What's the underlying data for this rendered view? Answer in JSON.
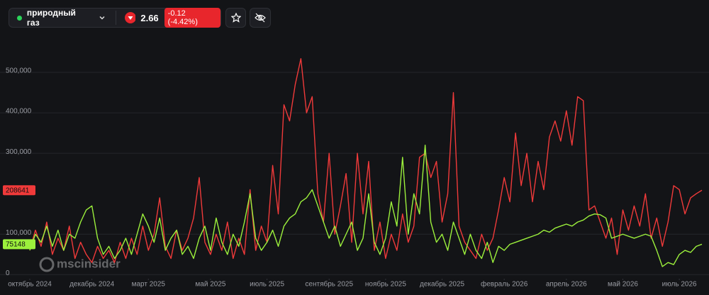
{
  "header": {
    "instrument": "природный газ",
    "price": "2.66",
    "change": "-0.12 (-4.42%)"
  },
  "chart_data": {
    "type": "line",
    "watermark": "mscinsider",
    "xlim": [
      0,
      119
    ],
    "xticks": [
      {
        "value": 0,
        "label": "октябрь 2024"
      },
      {
        "value": 11,
        "label": "декабрь 2024"
      },
      {
        "value": 21,
        "label": "март 2025"
      },
      {
        "value": 32,
        "label": "май 2025"
      },
      {
        "value": 42,
        "label": "июль 2025"
      },
      {
        "value": 53,
        "label": "сентябрь 2025"
      },
      {
        "value": 63,
        "label": "ноябрь 2025"
      },
      {
        "value": 73,
        "label": "декабрь 2025"
      },
      {
        "value": 84,
        "label": "февраль 2026"
      },
      {
        "value": 95,
        "label": "апрель 2026"
      },
      {
        "value": 105,
        "label": "май 2026"
      },
      {
        "value": 115,
        "label": "июль 2026"
      }
    ],
    "ylim": [
      -10000,
      600000
    ],
    "yticks": [
      0,
      {
        "value": 100000,
        "label": "100,000"
      },
      {
        "value": 300000,
        "label": "300,000"
      },
      {
        "value": 400000,
        "label": "400,000"
      },
      {
        "value": 500000,
        "label": "500,000"
      }
    ],
    "grid": true,
    "series": [
      {
        "color": "#f03a3a",
        "values": [
          60000,
          110000,
          70000,
          130000,
          50000,
          90000,
          60000,
          120000,
          40000,
          80000,
          50000,
          30000,
          70000,
          40000,
          60000,
          30000,
          80000,
          40000,
          90000,
          50000,
          120000,
          60000,
          100000,
          190000,
          70000,
          40000,
          110000,
          60000,
          90000,
          140000,
          240000,
          80000,
          50000,
          100000,
          60000,
          130000,
          40000,
          90000,
          50000,
          210000,
          60000,
          120000,
          80000,
          270000,
          150000,
          420000,
          380000,
          470000,
          534000,
          400000,
          440000,
          200000,
          130000,
          300000,
          100000,
          170000,
          250000,
          80000,
          300000,
          150000,
          280000,
          60000,
          130000,
          40000,
          100000,
          60000,
          150000,
          80000,
          120000,
          290000,
          300000,
          240000,
          280000,
          130000,
          200000,
          450000,
          120000,
          80000,
          60000,
          40000,
          100000,
          60000,
          90000,
          160000,
          240000,
          180000,
          350000,
          220000,
          300000,
          180000,
          280000,
          210000,
          340000,
          380000,
          330000,
          405000,
          320000,
          440000,
          430000,
          160000,
          170000,
          130000,
          90000,
          140000,
          50000,
          160000,
          110000,
          170000,
          120000,
          200000,
          90000,
          140000,
          70000,
          130000,
          220000,
          210000,
          150000,
          190000,
          200000,
          208641
        ]
      },
      {
        "color": "#9cf03c",
        "values": [
          60000,
          100000,
          80000,
          120000,
          70000,
          110000,
          60000,
          100000,
          90000,
          130000,
          160000,
          170000,
          90000,
          50000,
          70000,
          40000,
          60000,
          90000,
          50000,
          100000,
          150000,
          120000,
          80000,
          140000,
          60000,
          90000,
          110000,
          50000,
          70000,
          40000,
          90000,
          120000,
          60000,
          140000,
          80000,
          50000,
          100000,
          70000,
          130000,
          200000,
          90000,
          60000,
          80000,
          110000,
          70000,
          120000,
          140000,
          150000,
          180000,
          190000,
          210000,
          170000,
          130000,
          90000,
          120000,
          70000,
          100000,
          130000,
          60000,
          90000,
          200000,
          80000,
          50000,
          90000,
          180000,
          120000,
          290000,
          100000,
          200000,
          150000,
          320000,
          130000,
          80000,
          100000,
          60000,
          130000,
          90000,
          50000,
          100000,
          60000,
          40000,
          80000,
          30000,
          70000,
          60000,
          75000,
          80000,
          85000,
          90000,
          95000,
          100000,
          110000,
          105000,
          115000,
          120000,
          125000,
          120000,
          130000,
          135000,
          145000,
          150000,
          148000,
          140000,
          90000,
          95000,
          100000,
          95000,
          90000,
          95000,
          100000,
          95000,
          60000,
          20000,
          30000,
          25000,
          50000,
          60000,
          55000,
          70000,
          75148
        ]
      }
    ]
  }
}
